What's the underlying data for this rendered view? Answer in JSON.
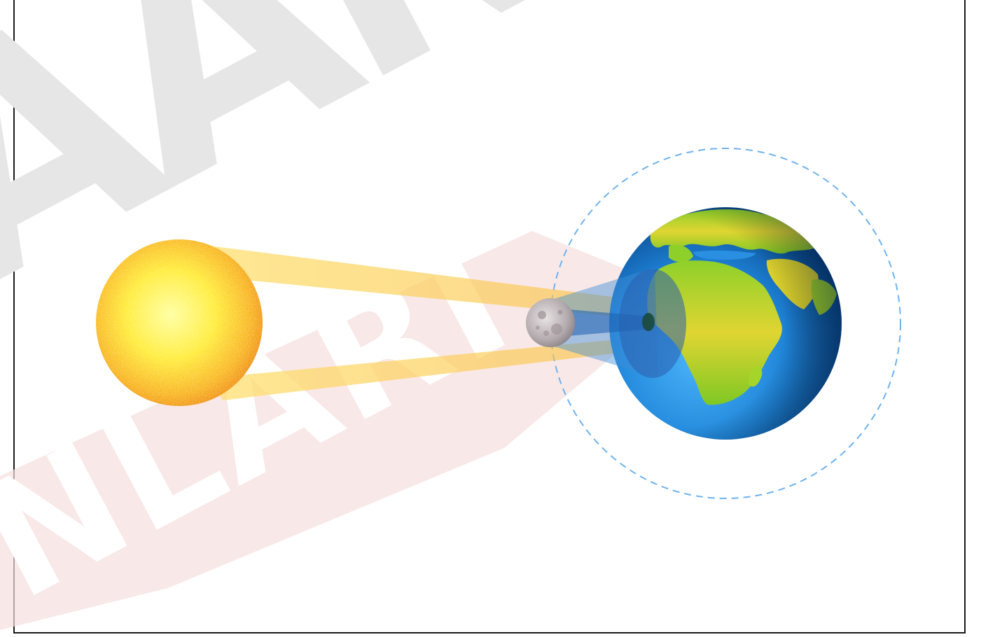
{
  "diagram": {
    "kind": "solar-eclipse",
    "bodies": [
      "sun",
      "moon",
      "earth"
    ],
    "elements": {
      "sun": {
        "icon": "sun-icon"
      },
      "moon": {
        "icon": "moon-icon"
      },
      "earth": {
        "icon": "earth-globe-icon"
      },
      "moon_orbit": {
        "style": "dashed"
      },
      "umbra": {
        "description_icon": "umbra-shadow"
      },
      "penumbra": {
        "description_icon": "penumbra-shadow"
      }
    }
  },
  "watermark": {
    "top_text": "AAN",
    "bottom_text": "NLARI"
  },
  "colors": {
    "sun_core": "#fff45a",
    "sun_edge": "#f39a16",
    "sunlight_beam": "#ffd23f",
    "shadow_beam": "#3f8fd8",
    "orbit_dash": "#6fb2ee",
    "ocean_light": "#3aa6f2",
    "ocean_dark": "#0a4f9a",
    "land_green": "#8fcf2a",
    "land_yellow": "#e8d936",
    "moon_gray": "#b9b1b3",
    "frame_border": "#1a1a1a",
    "watermark_gray": "#e6e6e6",
    "watermark_pink": "#f6dede"
  }
}
